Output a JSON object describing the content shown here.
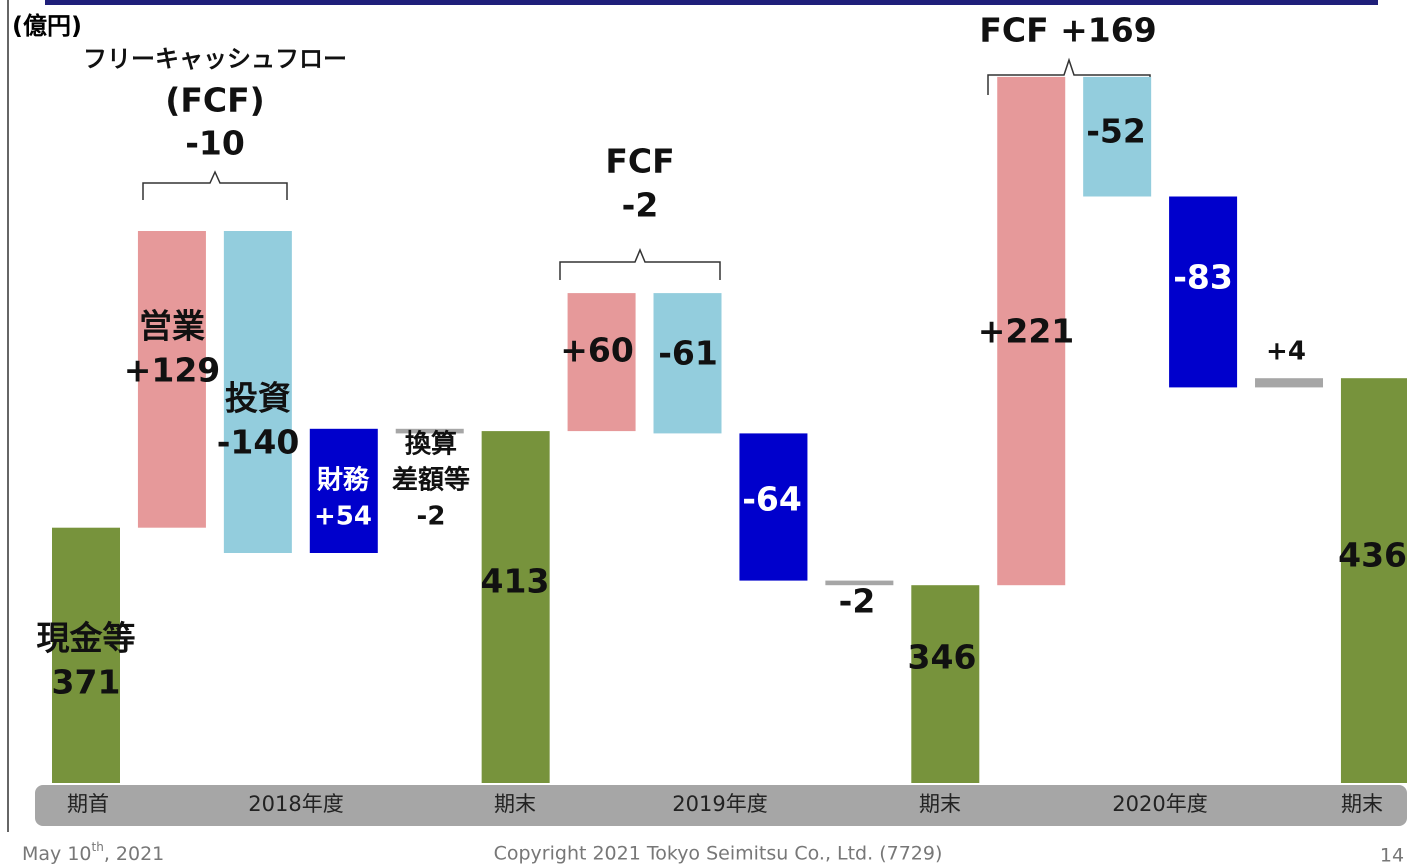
{
  "chart_data": {
    "type": "waterfall",
    "unit_label": "(億円)",
    "values": [
      371,
      129,
      -140,
      54,
      -2,
      413,
      60,
      -61,
      -64,
      -2,
      346,
      221,
      -52,
      -83,
      4,
      436
    ],
    "value_labels": [
      "371",
      "+129",
      "-140",
      "+54",
      "-2",
      "413",
      "+60",
      "-61",
      "-64",
      "-2",
      "346",
      "+221",
      "-52",
      "-83",
      "+4",
      "436"
    ],
    "kinds": [
      "total",
      "change",
      "change",
      "change",
      "change",
      "total",
      "change",
      "change",
      "change",
      "change",
      "total",
      "change",
      "change",
      "change",
      "change",
      "total"
    ],
    "colors": [
      "#77933c",
      "#e6999a",
      "#93cddd",
      "#0000cc",
      "#a6a6a6",
      "#77933c",
      "#e6999a",
      "#93cddd",
      "#0000cc",
      "#a6a6a6",
      "#77933c",
      "#e6999a",
      "#93cddd",
      "#0000cc",
      "#a6a6a6",
      "#77933c"
    ],
    "bar_labels": [
      [
        "現金等"
      ],
      [
        "営業"
      ],
      [
        "投資"
      ],
      [
        "財務"
      ],
      [
        "換算",
        "差額等"
      ],
      null,
      null,
      null,
      null,
      null,
      null,
      null,
      null,
      null,
      null,
      null
    ],
    "x_labels": [
      "期首",
      "2018年度",
      "期末",
      "2019年度",
      "期末",
      "2020年度",
      "期末"
    ],
    "annotations": [
      [
        "フリーキャッシュフロー",
        "(FCF)",
        "-10"
      ],
      [
        "FCF",
        "-2"
      ],
      [
        "FCF +169"
      ]
    ],
    "ylim": [
      260,
      600
    ]
  },
  "footer": {
    "date": "May 10",
    "date_sup": "th",
    "date_end": ", 2021",
    "copyright": "Copyright  2021 Tokyo Seimitsu Co., Ltd. (7729)",
    "page": "14"
  }
}
